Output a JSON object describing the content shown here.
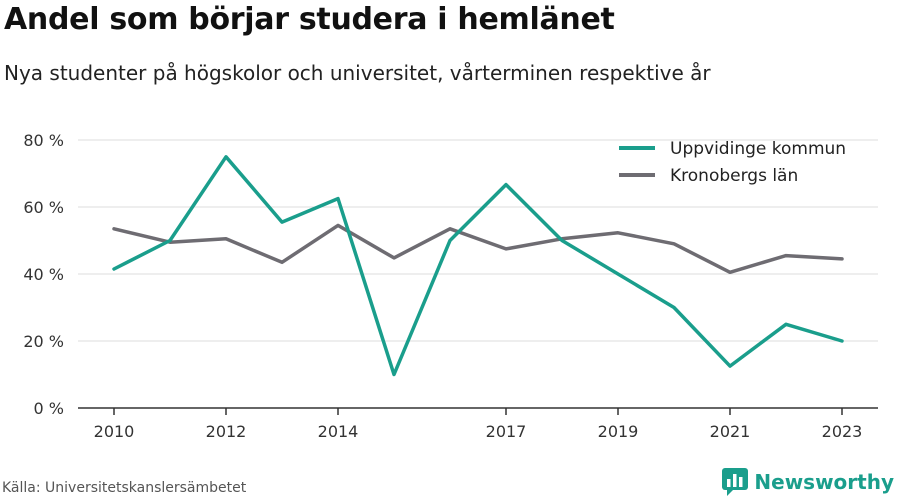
{
  "title": "Andel som börjar studera i hemlänet",
  "subtitle": "Nya studenter på högskolor och universitet, vårterminen respektive år",
  "source": "Källa: Universitetskanslersämbetet",
  "brand": "Newsworthy",
  "colors": {
    "brand": "#1a9e8c",
    "grid": "#dddddd",
    "axis": "#333333"
  },
  "chart_data": {
    "type": "line",
    "x": [
      2010,
      2011,
      2012,
      2013,
      2014,
      2015,
      2016,
      2017,
      2018,
      2019,
      2020,
      2021,
      2022,
      2023
    ],
    "x_ticks": [
      2010,
      2012,
      2014,
      2017,
      2019,
      2021,
      2023
    ],
    "x_tick_labels": [
      "2010",
      "2012",
      "2014",
      "2017",
      "2019",
      "2021",
      "2023"
    ],
    "xlim": [
      2010,
      2023
    ],
    "y_ticks": [
      0,
      20,
      40,
      60,
      80
    ],
    "y_tick_labels": [
      "0 %",
      "20 %",
      "40 %",
      "60 %",
      "80 %"
    ],
    "ylim": [
      0,
      80
    ],
    "grid": true,
    "legend_position": "top-right",
    "series": [
      {
        "name": "Uppvidinge kommun",
        "color": "#1a9e8c",
        "values": [
          41.5,
          50,
          75,
          55.5,
          62.5,
          10,
          50,
          66.7,
          50,
          40,
          30,
          12.5,
          25,
          20
        ]
      },
      {
        "name": "Kronobergs län",
        "color": "#6e6c72",
        "values": [
          53.5,
          49.5,
          50.5,
          43.5,
          54.5,
          44.8,
          53.5,
          47.5,
          50.5,
          52.3,
          49,
          40.5,
          45.5,
          44.5
        ]
      }
    ]
  }
}
